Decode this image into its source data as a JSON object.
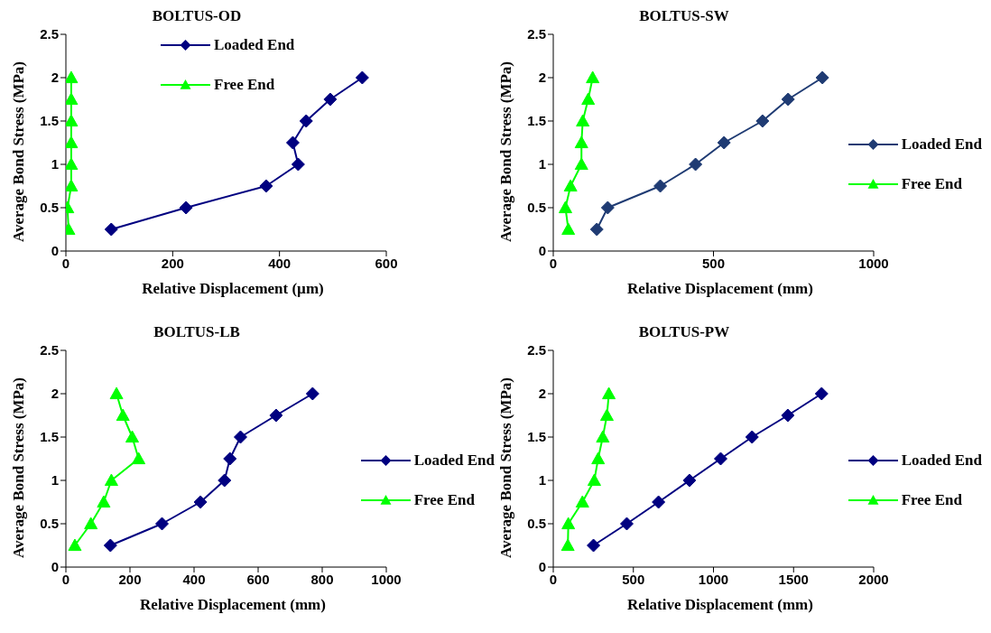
{
  "chart_data": [
    {
      "type": "line",
      "title": "BOLTUS-OD",
      "xlabel": "Relative Displacement (µm)",
      "ylabel": "Average Bond Stress (MPa)",
      "xlim": [
        0,
        600
      ],
      "xticks": [
        0,
        200,
        400,
        600
      ],
      "ylim": [
        0,
        2.5
      ],
      "yticks": [
        0,
        0.5,
        1,
        1.5,
        2,
        2.5
      ],
      "grid": false,
      "legend": "top",
      "series": [
        {
          "name": "Loaded End",
          "color": "#000080",
          "marker": "diamond",
          "x": [
            85,
            225,
            375,
            435,
            425,
            450,
            495,
            555
          ],
          "values": [
            0.25,
            0.5,
            0.75,
            1,
            1.25,
            1.5,
            1.75,
            2
          ]
        },
        {
          "name": "Free End",
          "color": "#00ff00",
          "marker": "triangle",
          "x": [
            5,
            3,
            10,
            10,
            10,
            10,
            10,
            10
          ],
          "values": [
            0.25,
            0.5,
            0.75,
            1,
            1.25,
            1.5,
            1.75,
            2
          ]
        }
      ]
    },
    {
      "type": "line",
      "title": "BOLTUS-SW",
      "xlabel": "Relative Displacement (mm)",
      "ylabel": "Average Bond Stress (MPa)",
      "xlim": [
        0,
        1000
      ],
      "xticks": [
        0,
        500,
        1000
      ],
      "ylim": [
        0,
        2.5
      ],
      "yticks": [
        0,
        0.5,
        1,
        1.5,
        2,
        2.5
      ],
      "grid": false,
      "legend": "right",
      "series": [
        {
          "name": "Loaded End",
          "color": "#1f3b73",
          "marker": "diamond",
          "x": [
            136,
            170,
            334,
            444,
            533,
            653,
            733,
            840
          ],
          "values": [
            0.25,
            0.5,
            0.75,
            1,
            1.25,
            1.5,
            1.75,
            2
          ]
        },
        {
          "name": "Free End",
          "color": "#00ff00",
          "marker": "triangle",
          "x": [
            47,
            38,
            54,
            88,
            88,
            92,
            109,
            123
          ],
          "values": [
            0.25,
            0.5,
            0.75,
            1,
            1.25,
            1.5,
            1.75,
            2
          ]
        }
      ]
    },
    {
      "type": "line",
      "title": "BOLTUS-LB",
      "xlabel": "Relative Displacement (mm)",
      "ylabel": "Average Bond Stress (MPa)",
      "xlim": [
        0,
        1000
      ],
      "xticks": [
        0,
        200,
        400,
        600,
        800,
        1000
      ],
      "ylim": [
        0,
        2.5
      ],
      "yticks": [
        0,
        0.5,
        1,
        1.5,
        2,
        2.5
      ],
      "grid": false,
      "legend": "right",
      "series": [
        {
          "name": "Loaded End",
          "color": "#000080",
          "marker": "diamond",
          "x": [
            139,
            300,
            420,
            495,
            512,
            545,
            656,
            770
          ],
          "values": [
            0.25,
            0.5,
            0.75,
            1,
            1.25,
            1.5,
            1.75,
            2
          ]
        },
        {
          "name": "Free End",
          "color": "#00ff00",
          "marker": "triangle",
          "x": [
            28,
            78,
            118,
            142,
            227,
            207,
            178,
            158
          ],
          "values": [
            0.25,
            0.5,
            0.75,
            1,
            1.25,
            1.5,
            1.75,
            2
          ]
        }
      ]
    },
    {
      "type": "line",
      "title": "BOLTUS-PW",
      "xlabel": "Relative Displacement (mm)",
      "ylabel": "Average Bond Stress (MPa)",
      "xlim": [
        0,
        2000
      ],
      "xticks": [
        0,
        500,
        1000,
        1500,
        2000
      ],
      "ylim": [
        0,
        2.5
      ],
      "yticks": [
        0,
        0.5,
        1,
        1.5,
        2,
        2.5
      ],
      "grid": false,
      "legend": "right",
      "series": [
        {
          "name": "Loaded End",
          "color": "#000080",
          "marker": "diamond",
          "x": [
            251,
            459,
            657,
            850,
            1045,
            1241,
            1464,
            1675
          ],
          "values": [
            0.25,
            0.5,
            0.75,
            1,
            1.25,
            1.5,
            1.75,
            2
          ]
        },
        {
          "name": "Free End",
          "color": "#00ff00",
          "marker": "triangle",
          "x": [
            91,
            94,
            182,
            256,
            280,
            309,
            335,
            347
          ],
          "values": [
            0.25,
            0.5,
            0.75,
            1,
            1.25,
            1.5,
            1.75,
            2
          ]
        }
      ]
    }
  ]
}
